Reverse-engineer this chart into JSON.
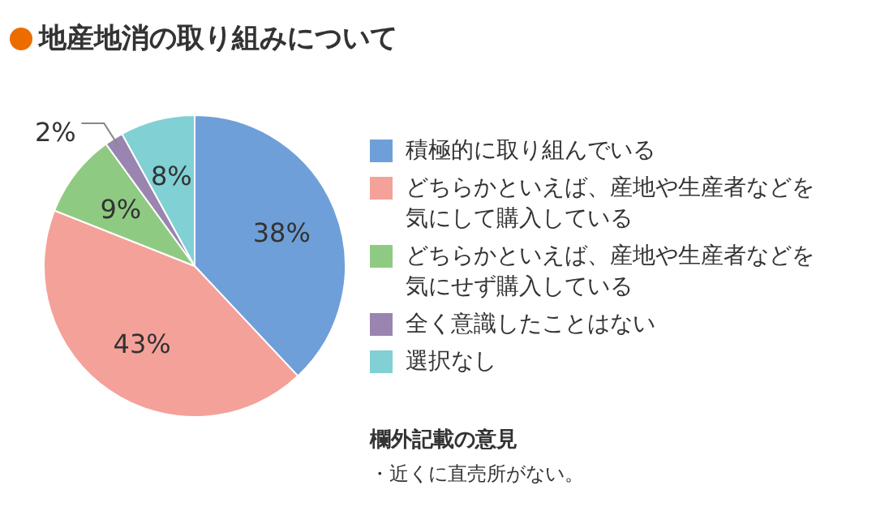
{
  "chart_data": {
    "type": "pie",
    "title": "地産地消の取り組みについて",
    "categories": [
      "積極的に取り組んでいる",
      "どちらかといえば、産地や生産者などを気にして購入している",
      "どちらかといえば、産地や生産者などを気にせず購入している",
      "全く意識したことはない",
      "選択なし"
    ],
    "values": [
      38,
      43,
      9,
      2,
      8
    ],
    "value_labels": [
      "38%",
      "43%",
      "9%",
      "2%",
      "8%"
    ],
    "colors": [
      "#6f9fd8",
      "#f4a19a",
      "#8fca82",
      "#9a84b0",
      "#80d0d4"
    ],
    "legend": "right",
    "annotations": [
      "欄外記載の意見",
      "・近くに直売所がない。"
    ]
  }
}
